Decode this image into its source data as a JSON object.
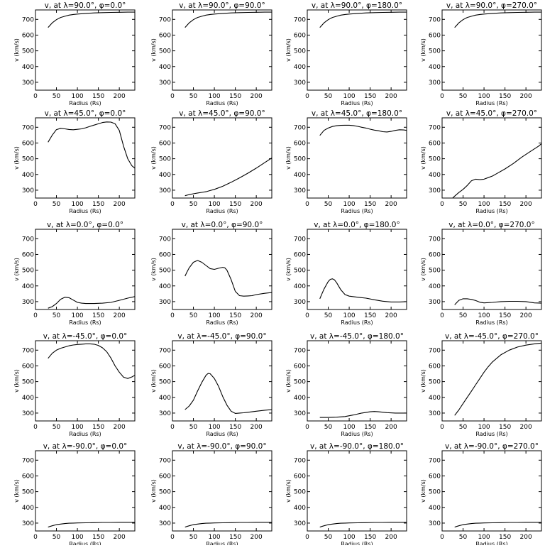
{
  "figure": {
    "xlabel": "Radius (Rs)",
    "ylabel": "v (km/s)",
    "xlim": [
      0,
      237
    ],
    "ylim": [
      250,
      760
    ],
    "xticks": [
      0,
      50,
      100,
      150,
      200
    ],
    "yticks": [
      300,
      400,
      500,
      600,
      700
    ],
    "line_color": "#000000"
  },
  "chart_data": [
    {
      "type": "line",
      "title": "v, at λ=90.0°, φ=0.0°",
      "x": [
        30,
        40,
        50,
        60,
        70,
        80,
        90,
        100,
        120,
        140,
        160,
        180,
        200,
        220,
        237
      ],
      "y": [
        648,
        678,
        698,
        712,
        720,
        727,
        731,
        734,
        738,
        741,
        743,
        744,
        745,
        746,
        746
      ]
    },
    {
      "type": "line",
      "title": "v, at λ=90.0°, φ=90.0°",
      "x": [
        30,
        40,
        50,
        60,
        70,
        80,
        90,
        100,
        120,
        140,
        160,
        180,
        200,
        220,
        237
      ],
      "y": [
        648,
        678,
        698,
        712,
        720,
        727,
        731,
        734,
        738,
        741,
        743,
        744,
        745,
        746,
        746
      ]
    },
    {
      "type": "line",
      "title": "v, at λ=90.0°, φ=180.0°",
      "x": [
        30,
        40,
        50,
        60,
        70,
        80,
        90,
        100,
        120,
        140,
        160,
        180,
        200,
        220,
        237
      ],
      "y": [
        648,
        678,
        698,
        712,
        720,
        727,
        731,
        734,
        738,
        741,
        743,
        744,
        745,
        746,
        746
      ]
    },
    {
      "type": "line",
      "title": "v, at λ=90.0°, φ=270.0°",
      "x": [
        30,
        40,
        50,
        60,
        70,
        80,
        90,
        100,
        120,
        140,
        160,
        180,
        200,
        220,
        237
      ],
      "y": [
        648,
        678,
        698,
        712,
        720,
        727,
        731,
        734,
        738,
        741,
        743,
        744,
        745,
        746,
        746
      ]
    },
    {
      "type": "line",
      "title": "v, at λ=45.0°, φ=0.0°",
      "x": [
        30,
        40,
        50,
        60,
        70,
        80,
        90,
        100,
        110,
        120,
        130,
        140,
        150,
        160,
        170,
        180,
        190,
        200,
        210,
        220,
        230,
        237
      ],
      "y": [
        605,
        650,
        685,
        693,
        690,
        686,
        684,
        687,
        690,
        697,
        706,
        714,
        722,
        730,
        734,
        733,
        722,
        680,
        580,
        500,
        455,
        440
      ]
    },
    {
      "type": "line",
      "title": "v, at λ=45.0°, φ=90.0°",
      "x": [
        30,
        40,
        50,
        60,
        70,
        80,
        90,
        100,
        120,
        140,
        160,
        180,
        200,
        220,
        237
      ],
      "y": [
        265,
        272,
        277,
        282,
        286,
        290,
        298,
        305,
        325,
        350,
        378,
        408,
        440,
        475,
        505
      ]
    },
    {
      "type": "line",
      "title": "v, at λ=45.0°, φ=180.0°",
      "x": [
        30,
        40,
        50,
        60,
        70,
        80,
        90,
        100,
        110,
        120,
        130,
        140,
        150,
        160,
        170,
        180,
        190,
        200,
        210,
        220,
        230,
        237
      ],
      "y": [
        648,
        680,
        695,
        705,
        710,
        712,
        713,
        713,
        711,
        706,
        700,
        695,
        688,
        682,
        678,
        672,
        670,
        674,
        680,
        684,
        683,
        680
      ]
    },
    {
      "type": "line",
      "title": "v, at λ=45.0°, φ=270.0°",
      "x": [
        25,
        30,
        40,
        50,
        60,
        70,
        80,
        90,
        100,
        110,
        120,
        130,
        150,
        170,
        190,
        210,
        230,
        237
      ],
      "y": [
        250,
        262,
        285,
        305,
        330,
        360,
        370,
        367,
        370,
        380,
        390,
        405,
        435,
        470,
        510,
        545,
        580,
        595
      ]
    },
    {
      "type": "line",
      "title": "v, at λ=0.0°, φ=0.0°",
      "x": [
        30,
        40,
        50,
        60,
        70,
        80,
        90,
        100,
        110,
        120,
        140,
        160,
        180,
        200,
        220,
        237
      ],
      "y": [
        258,
        268,
        288,
        315,
        328,
        325,
        310,
        295,
        290,
        288,
        288,
        290,
        295,
        308,
        322,
        332
      ]
    },
    {
      "type": "line",
      "title": "v, at λ=0.0°, φ=90.0°",
      "x": [
        30,
        35,
        40,
        50,
        60,
        70,
        80,
        90,
        100,
        110,
        120,
        125,
        130,
        140,
        150,
        160,
        170,
        180,
        190,
        200,
        220,
        237
      ],
      "y": [
        462,
        490,
        515,
        550,
        562,
        550,
        530,
        510,
        505,
        512,
        518,
        515,
        500,
        440,
        365,
        338,
        335,
        336,
        338,
        345,
        353,
        358
      ]
    },
    {
      "type": "line",
      "title": "v, at λ=0.0°, φ=180.0°",
      "x": [
        30,
        35,
        40,
        50,
        55,
        60,
        65,
        70,
        80,
        90,
        100,
        120,
        140,
        160,
        180,
        200,
        220,
        237
      ],
      "y": [
        318,
        350,
        380,
        428,
        442,
        445,
        438,
        420,
        375,
        345,
        335,
        328,
        322,
        312,
        303,
        298,
        298,
        300
      ]
    },
    {
      "type": "line",
      "title": "v, at λ=0.0°, φ=270.0°",
      "x": [
        30,
        40,
        50,
        60,
        70,
        80,
        90,
        100,
        120,
        140,
        160,
        180,
        200,
        220,
        237
      ],
      "y": [
        280,
        308,
        318,
        318,
        314,
        307,
        296,
        292,
        295,
        300,
        302,
        302,
        300,
        292,
        290
      ]
    },
    {
      "type": "line",
      "title": "v, at λ=-45.0°, φ=0.0°",
      "x": [
        30,
        40,
        50,
        60,
        70,
        80,
        90,
        100,
        110,
        120,
        130,
        140,
        150,
        160,
        170,
        180,
        190,
        200,
        210,
        220,
        230,
        237
      ],
      "y": [
        648,
        680,
        700,
        712,
        720,
        728,
        733,
        736,
        738,
        740,
        740,
        738,
        730,
        715,
        690,
        650,
        600,
        560,
        528,
        520,
        530,
        540
      ]
    },
    {
      "type": "line",
      "title": "v, at λ=-45.0°, φ=90.0°",
      "x": [
        30,
        40,
        50,
        60,
        70,
        80,
        85,
        90,
        100,
        110,
        120,
        130,
        140,
        150,
        160,
        170,
        180,
        190,
        200,
        220,
        237
      ],
      "y": [
        322,
        345,
        382,
        440,
        495,
        540,
        552,
        550,
        520,
        470,
        405,
        350,
        312,
        298,
        300,
        302,
        305,
        308,
        312,
        318,
        322
      ]
    },
    {
      "type": "line",
      "title": "v, at λ=-45.0°, φ=180.0°",
      "x": [
        30,
        50,
        70,
        90,
        110,
        130,
        150,
        160,
        170,
        190,
        210,
        237
      ],
      "y": [
        272,
        272,
        274,
        278,
        288,
        300,
        308,
        310,
        308,
        303,
        300,
        300
      ]
    },
    {
      "type": "line",
      "title": "v, at λ=-45.0°, φ=270.0°",
      "x": [
        30,
        40,
        50,
        60,
        70,
        80,
        90,
        100,
        110,
        120,
        140,
        160,
        180,
        200,
        220,
        237
      ],
      "y": [
        285,
        320,
        360,
        400,
        440,
        480,
        520,
        560,
        595,
        625,
        670,
        700,
        720,
        732,
        740,
        745
      ]
    },
    {
      "type": "line",
      "title": "v, at λ=-90.0°, φ=0.0°",
      "x": [
        30,
        40,
        50,
        60,
        70,
        80,
        90,
        100,
        120,
        140,
        160,
        180,
        200,
        220,
        237
      ],
      "y": [
        275,
        283,
        290,
        294,
        297,
        299,
        300,
        301,
        302,
        303,
        304,
        304,
        305,
        305,
        305
      ]
    },
    {
      "type": "line",
      "title": "v, at λ=-90.0°, φ=90.0°",
      "x": [
        30,
        40,
        50,
        60,
        70,
        80,
        90,
        100,
        120,
        140,
        160,
        180,
        200,
        220,
        237
      ],
      "y": [
        275,
        283,
        290,
        294,
        297,
        299,
        300,
        301,
        302,
        303,
        304,
        304,
        305,
        305,
        305
      ]
    },
    {
      "type": "line",
      "title": "v, at λ=-90.0°, φ=180.0°",
      "x": [
        30,
        40,
        50,
        60,
        70,
        80,
        90,
        100,
        120,
        140,
        160,
        180,
        200,
        220,
        237
      ],
      "y": [
        275,
        283,
        290,
        294,
        297,
        299,
        300,
        301,
        302,
        303,
        304,
        304,
        305,
        305,
        305
      ]
    },
    {
      "type": "line",
      "title": "v, at λ=-90.0°, φ=270.0°",
      "x": [
        30,
        40,
        50,
        60,
        70,
        80,
        90,
        100,
        120,
        140,
        160,
        180,
        200,
        220,
        237
      ],
      "y": [
        275,
        283,
        290,
        294,
        297,
        299,
        300,
        301,
        302,
        303,
        304,
        304,
        305,
        305,
        305
      ]
    }
  ]
}
